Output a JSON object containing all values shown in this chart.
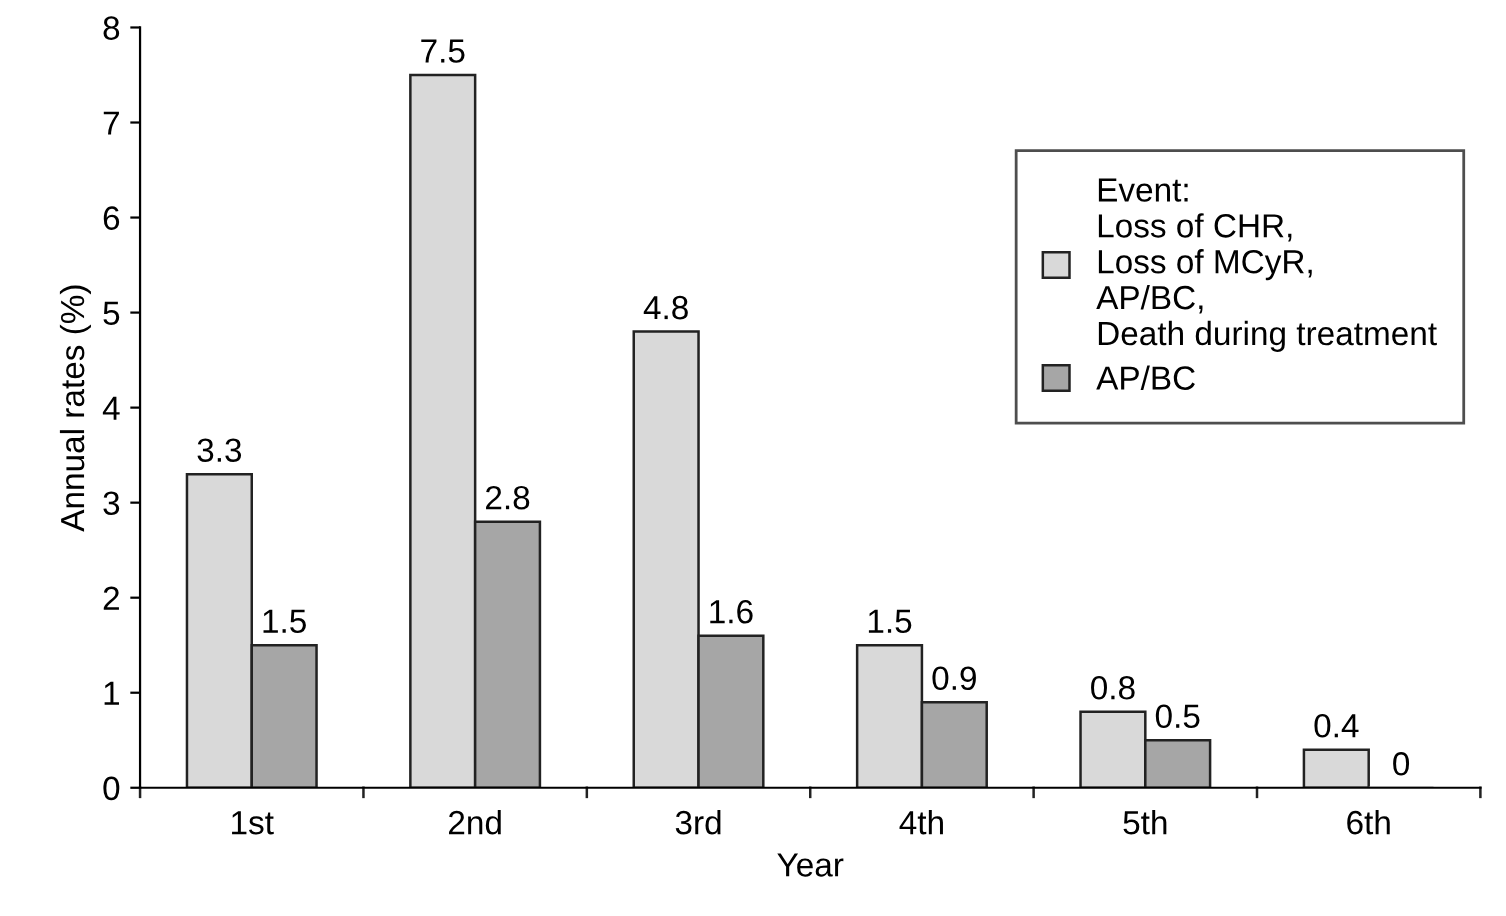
{
  "chart_data": {
    "type": "bar",
    "xlabel": "Year",
    "ylabel": "Annual rates (%)",
    "categories": [
      "1st",
      "2nd",
      "3rd",
      "4th",
      "5th",
      "6th"
    ],
    "series": [
      {
        "name": "Event:\nLoss of CHR,\nLoss of MCyR,\nAP/BC,\nDeath during treatment",
        "color": "#d9d9d9",
        "values": [
          3.3,
          7.5,
          4.8,
          1.5,
          0.8,
          0.4
        ]
      },
      {
        "name": "AP/BC",
        "color": "#a6a6a6",
        "values": [
          1.5,
          2.8,
          1.6,
          0.9,
          0.5,
          0
        ]
      }
    ],
    "ylim": [
      0,
      8
    ],
    "yticks": [
      0,
      1,
      2,
      3,
      4,
      5,
      6,
      7,
      8
    ],
    "grid": false,
    "legend": "top right",
    "data_labels": true
  }
}
